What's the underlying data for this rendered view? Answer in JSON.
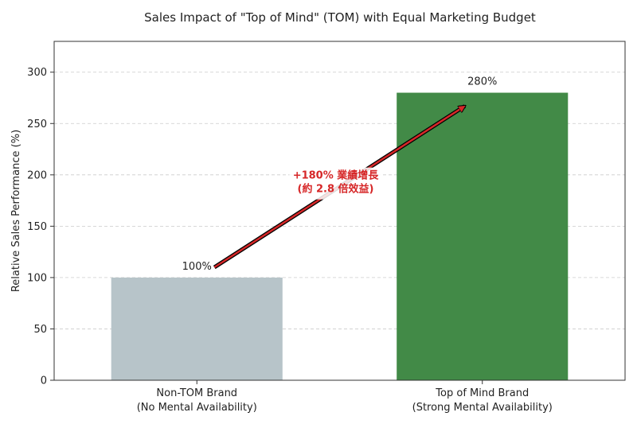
{
  "chart_data": {
    "type": "bar",
    "title": "Sales Impact of \"Top of Mind\" (TOM) with Equal Marketing Budget",
    "xlabel": "",
    "ylabel": "Relative Sales Performance (%)",
    "ylim": [
      0,
      330
    ],
    "yticks": [
      0,
      50,
      100,
      150,
      200,
      250,
      300
    ],
    "grid": true,
    "categories": [
      [
        "Non-TOM Brand",
        "(No Mental Availability)"
      ],
      [
        "Top of Mind Brand",
        "(Strong Mental Availability)"
      ]
    ],
    "values": [
      100,
      280
    ],
    "value_labels": [
      "100%",
      "280%"
    ],
    "colors": [
      "#b7c4c9",
      "#428a47"
    ],
    "annotation": {
      "lines": [
        "+180% 業績增長",
        "(約 2.8 倍效益)"
      ],
      "color": "#d62728",
      "from": [
        0,
        110
      ],
      "to": [
        1,
        267
      ]
    }
  }
}
